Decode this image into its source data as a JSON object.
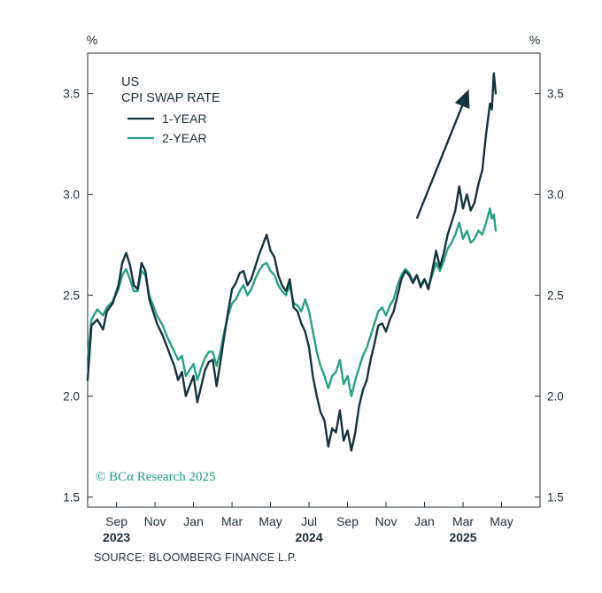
{
  "chart_data": {
    "type": "line",
    "title_lines": [
      "US",
      "CPI SWAP RATE"
    ],
    "y_unit_left": "%",
    "y_unit_right": "%",
    "ylim": [
      1.45,
      3.7
    ],
    "yticks": [
      1.5,
      2.0,
      2.5,
      3.0,
      3.5
    ],
    "ytick_labels": [
      "1.5",
      "2.0",
      "2.5",
      "3.0",
      "3.5"
    ],
    "x_range": [
      0,
      23.5
    ],
    "x_ticks": [
      {
        "pos": 1.5,
        "label": "Sep",
        "year": "2023"
      },
      {
        "pos": 3.5,
        "label": "Nov"
      },
      {
        "pos": 5.5,
        "label": "Jan"
      },
      {
        "pos": 7.5,
        "label": "Mar"
      },
      {
        "pos": 9.5,
        "label": "May"
      },
      {
        "pos": 11.5,
        "label": "Jul",
        "year": "2024"
      },
      {
        "pos": 13.5,
        "label": "Sep"
      },
      {
        "pos": 15.5,
        "label": "Nov"
      },
      {
        "pos": 17.5,
        "label": "Jan"
      },
      {
        "pos": 19.5,
        "label": "Mar",
        "year": "2025"
      },
      {
        "pos": 21.5,
        "label": "May"
      }
    ],
    "x_unit_note": "x = months since start of Jul 2023",
    "series": [
      {
        "name": "1-YEAR",
        "color": "#16333d",
        "points": [
          [
            0.0,
            2.08
          ],
          [
            0.2,
            2.35
          ],
          [
            0.5,
            2.38
          ],
          [
            0.8,
            2.33
          ],
          [
            1.0,
            2.42
          ],
          [
            1.3,
            2.46
          ],
          [
            1.6,
            2.55
          ],
          [
            1.8,
            2.66
          ],
          [
            2.0,
            2.71
          ],
          [
            2.2,
            2.65
          ],
          [
            2.4,
            2.55
          ],
          [
            2.6,
            2.53
          ],
          [
            2.8,
            2.66
          ],
          [
            3.0,
            2.62
          ],
          [
            3.2,
            2.48
          ],
          [
            3.4,
            2.42
          ],
          [
            3.6,
            2.36
          ],
          [
            3.9,
            2.3
          ],
          [
            4.1,
            2.25
          ],
          [
            4.3,
            2.2
          ],
          [
            4.5,
            2.15
          ],
          [
            4.7,
            2.08
          ],
          [
            4.9,
            2.12
          ],
          [
            5.1,
            2.0
          ],
          [
            5.3,
            2.05
          ],
          [
            5.5,
            2.1
          ],
          [
            5.7,
            1.97
          ],
          [
            5.9,
            2.05
          ],
          [
            6.1,
            2.13
          ],
          [
            6.3,
            2.17
          ],
          [
            6.5,
            2.18
          ],
          [
            6.7,
            2.05
          ],
          [
            6.9,
            2.17
          ],
          [
            7.1,
            2.3
          ],
          [
            7.3,
            2.42
          ],
          [
            7.5,
            2.53
          ],
          [
            7.7,
            2.56
          ],
          [
            7.9,
            2.61
          ],
          [
            8.1,
            2.62
          ],
          [
            8.3,
            2.55
          ],
          [
            8.5,
            2.58
          ],
          [
            8.7,
            2.64
          ],
          [
            8.9,
            2.7
          ],
          [
            9.1,
            2.75
          ],
          [
            9.3,
            2.8
          ],
          [
            9.5,
            2.72
          ],
          [
            9.7,
            2.69
          ],
          [
            9.9,
            2.6
          ],
          [
            10.1,
            2.55
          ],
          [
            10.3,
            2.52
          ],
          [
            10.5,
            2.58
          ],
          [
            10.7,
            2.44
          ],
          [
            10.9,
            2.42
          ],
          [
            11.1,
            2.36
          ],
          [
            11.3,
            2.32
          ],
          [
            11.5,
            2.24
          ],
          [
            11.7,
            2.1
          ],
          [
            11.9,
            2.0
          ],
          [
            12.1,
            1.92
          ],
          [
            12.3,
            1.88
          ],
          [
            12.5,
            1.75
          ],
          [
            12.7,
            1.84
          ],
          [
            12.9,
            1.82
          ],
          [
            13.1,
            1.93
          ],
          [
            13.3,
            1.78
          ],
          [
            13.5,
            1.83
          ],
          [
            13.7,
            1.73
          ],
          [
            13.9,
            1.82
          ],
          [
            14.1,
            1.95
          ],
          [
            14.3,
            2.03
          ],
          [
            14.5,
            2.08
          ],
          [
            14.7,
            2.18
          ],
          [
            14.9,
            2.26
          ],
          [
            15.1,
            2.35
          ],
          [
            15.3,
            2.36
          ],
          [
            15.5,
            2.32
          ],
          [
            15.7,
            2.38
          ],
          [
            15.9,
            2.42
          ],
          [
            16.1,
            2.5
          ],
          [
            16.3,
            2.58
          ],
          [
            16.5,
            2.62
          ],
          [
            16.7,
            2.6
          ],
          [
            16.9,
            2.56
          ],
          [
            17.1,
            2.6
          ],
          [
            17.3,
            2.54
          ],
          [
            17.5,
            2.58
          ],
          [
            17.7,
            2.53
          ],
          [
            17.9,
            2.62
          ],
          [
            18.1,
            2.72
          ],
          [
            18.3,
            2.64
          ],
          [
            18.5,
            2.71
          ],
          [
            18.7,
            2.8
          ],
          [
            18.9,
            2.86
          ],
          [
            19.1,
            2.92
          ],
          [
            19.3,
            3.04
          ],
          [
            19.5,
            2.93
          ],
          [
            19.7,
            3.0
          ],
          [
            19.9,
            2.92
          ],
          [
            20.1,
            2.96
          ],
          [
            20.3,
            3.05
          ],
          [
            20.5,
            3.12
          ],
          [
            20.7,
            3.3
          ],
          [
            20.9,
            3.45
          ],
          [
            21.0,
            3.42
          ],
          [
            21.1,
            3.6
          ],
          [
            21.2,
            3.5
          ]
        ]
      },
      {
        "name": "2-YEAR",
        "color": "#26a285",
        "points": [
          [
            0.0,
            2.18
          ],
          [
            0.2,
            2.38
          ],
          [
            0.5,
            2.43
          ],
          [
            0.8,
            2.4
          ],
          [
            1.0,
            2.44
          ],
          [
            1.3,
            2.47
          ],
          [
            1.6,
            2.53
          ],
          [
            1.8,
            2.6
          ],
          [
            2.0,
            2.63
          ],
          [
            2.2,
            2.58
          ],
          [
            2.4,
            2.52
          ],
          [
            2.6,
            2.52
          ],
          [
            2.8,
            2.62
          ],
          [
            3.0,
            2.6
          ],
          [
            3.2,
            2.5
          ],
          [
            3.4,
            2.45
          ],
          [
            3.6,
            2.4
          ],
          [
            3.9,
            2.35
          ],
          [
            4.1,
            2.3
          ],
          [
            4.3,
            2.26
          ],
          [
            4.5,
            2.22
          ],
          [
            4.7,
            2.18
          ],
          [
            4.9,
            2.2
          ],
          [
            5.1,
            2.1
          ],
          [
            5.3,
            2.13
          ],
          [
            5.5,
            2.16
          ],
          [
            5.7,
            2.08
          ],
          [
            5.9,
            2.14
          ],
          [
            6.1,
            2.19
          ],
          [
            6.3,
            2.22
          ],
          [
            6.5,
            2.22
          ],
          [
            6.7,
            2.15
          ],
          [
            6.9,
            2.22
          ],
          [
            7.1,
            2.32
          ],
          [
            7.3,
            2.4
          ],
          [
            7.5,
            2.46
          ],
          [
            7.7,
            2.48
          ],
          [
            7.9,
            2.52
          ],
          [
            8.1,
            2.55
          ],
          [
            8.3,
            2.5
          ],
          [
            8.5,
            2.53
          ],
          [
            8.7,
            2.58
          ],
          [
            8.9,
            2.62
          ],
          [
            9.1,
            2.65
          ],
          [
            9.3,
            2.66
          ],
          [
            9.5,
            2.62
          ],
          [
            9.7,
            2.6
          ],
          [
            9.9,
            2.55
          ],
          [
            10.1,
            2.52
          ],
          [
            10.3,
            2.5
          ],
          [
            10.5,
            2.55
          ],
          [
            10.7,
            2.46
          ],
          [
            10.9,
            2.45
          ],
          [
            11.1,
            2.42
          ],
          [
            11.3,
            2.48
          ],
          [
            11.5,
            2.42
          ],
          [
            11.7,
            2.32
          ],
          [
            11.9,
            2.22
          ],
          [
            12.1,
            2.15
          ],
          [
            12.3,
            2.1
          ],
          [
            12.5,
            2.04
          ],
          [
            12.7,
            2.1
          ],
          [
            12.9,
            2.12
          ],
          [
            13.1,
            2.18
          ],
          [
            13.3,
            2.06
          ],
          [
            13.5,
            2.1
          ],
          [
            13.7,
            2.0
          ],
          [
            13.9,
            2.08
          ],
          [
            14.1,
            2.14
          ],
          [
            14.3,
            2.2
          ],
          [
            14.5,
            2.24
          ],
          [
            14.7,
            2.3
          ],
          [
            14.9,
            2.36
          ],
          [
            15.1,
            2.42
          ],
          [
            15.3,
            2.44
          ],
          [
            15.5,
            2.4
          ],
          [
            15.7,
            2.45
          ],
          [
            15.9,
            2.48
          ],
          [
            16.1,
            2.55
          ],
          [
            16.3,
            2.6
          ],
          [
            16.5,
            2.63
          ],
          [
            16.7,
            2.61
          ],
          [
            16.9,
            2.57
          ],
          [
            17.1,
            2.6
          ],
          [
            17.3,
            2.55
          ],
          [
            17.5,
            2.58
          ],
          [
            17.7,
            2.54
          ],
          [
            17.9,
            2.6
          ],
          [
            18.1,
            2.66
          ],
          [
            18.3,
            2.62
          ],
          [
            18.5,
            2.67
          ],
          [
            18.7,
            2.73
          ],
          [
            18.9,
            2.76
          ],
          [
            19.1,
            2.8
          ],
          [
            19.3,
            2.86
          ],
          [
            19.5,
            2.78
          ],
          [
            19.7,
            2.82
          ],
          [
            19.9,
            2.76
          ],
          [
            20.1,
            2.78
          ],
          [
            20.3,
            2.82
          ],
          [
            20.5,
            2.8
          ],
          [
            20.7,
            2.86
          ],
          [
            20.9,
            2.93
          ],
          [
            21.0,
            2.88
          ],
          [
            21.1,
            2.9
          ],
          [
            21.2,
            2.82
          ]
        ]
      }
    ],
    "annotations": {
      "arrow": {
        "from": [
          17.1,
          2.88
        ],
        "to": [
          19.8,
          3.52
        ],
        "color": "#16333d"
      }
    },
    "watermark": "© BCα Research 2025",
    "grid": false,
    "legend_placement": "top-left"
  },
  "footer": {
    "source": "SOURCE: BLOOMBERG FINANCE L.P."
  }
}
